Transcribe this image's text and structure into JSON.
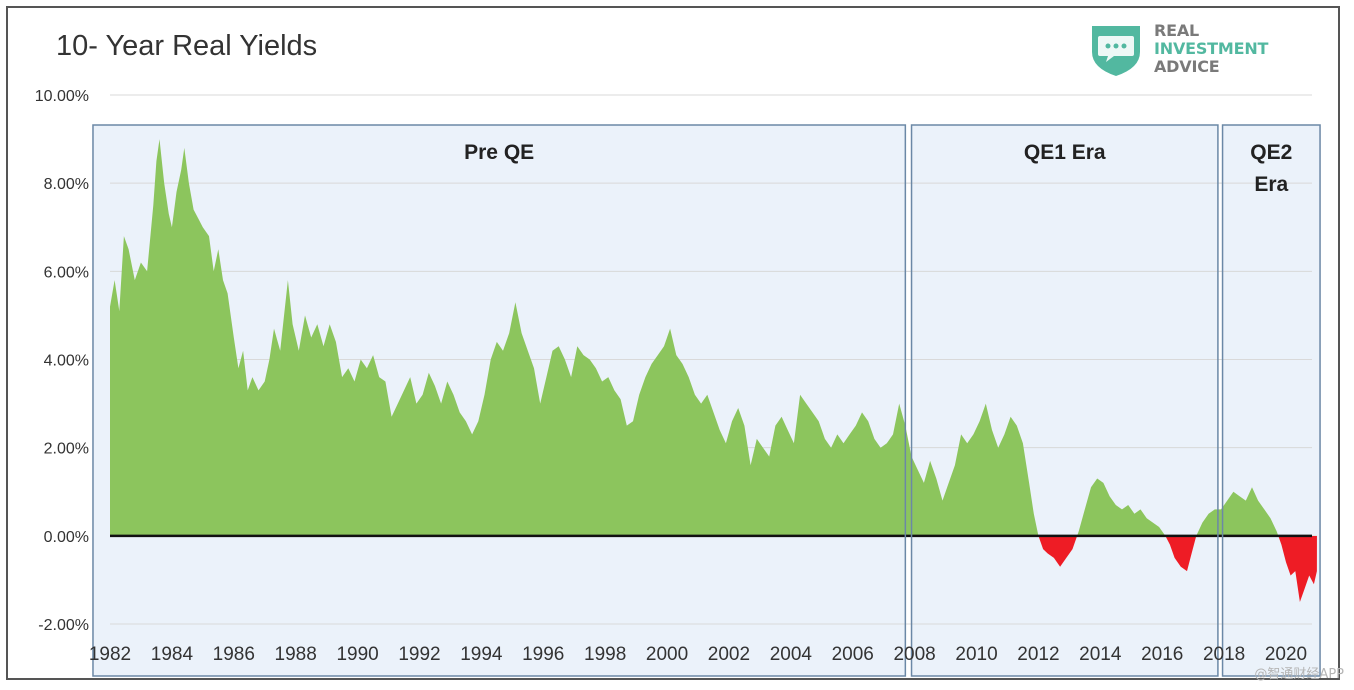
{
  "chart_data": {
    "type": "area",
    "title": "10- Year Real Yields",
    "xlabel": "",
    "ylabel": "",
    "y_tick_labels": [
      "10.00%",
      "8.00%",
      "6.00%",
      "4.00%",
      "2.00%",
      "0.00%",
      "-2.00%"
    ],
    "y_ticks": [
      10,
      8,
      6,
      4,
      2,
      0,
      -2
    ],
    "ylim": [
      -2.0,
      10.0
    ],
    "x_tick_labels": [
      "1982",
      "1984",
      "1986",
      "1988",
      "1990",
      "1992",
      "1994",
      "1996",
      "1998",
      "2000",
      "2002",
      "2004",
      "2006",
      "2008",
      "2010",
      "2012",
      "2014",
      "2016",
      "2018",
      "2020"
    ],
    "xlim": [
      1982,
      2021.1
    ],
    "grid": true,
    "colors": {
      "positive": "#8cc55d",
      "negative": "#ee1c25",
      "zero_line": "#111111",
      "grid": "#d9d9d9",
      "region_fill": "#e8f0f9",
      "region_border": "#6b88a6"
    },
    "regions": [
      {
        "label_lines": [
          "Pre QE"
        ],
        "start": 1981.45,
        "end": 2007.7
      },
      {
        "label_lines": [
          "QE1 Era"
        ],
        "start": 2007.9,
        "end": 2017.8
      },
      {
        "label_lines": [
          "QE2",
          "Era"
        ],
        "start": 2017.95,
        "end": 2021.1
      }
    ],
    "series": [
      {
        "values": [
          [
            1982.0,
            5.2
          ],
          [
            1982.15,
            5.8
          ],
          [
            1982.3,
            5.1
          ],
          [
            1982.45,
            6.8
          ],
          [
            1982.6,
            6.5
          ],
          [
            1982.8,
            5.8
          ],
          [
            1983.0,
            6.2
          ],
          [
            1983.2,
            6.0
          ],
          [
            1983.4,
            7.5
          ],
          [
            1983.5,
            8.5
          ],
          [
            1983.6,
            9.0
          ],
          [
            1983.75,
            8.0
          ],
          [
            1983.9,
            7.3
          ],
          [
            1984.0,
            7.0
          ],
          [
            1984.15,
            7.8
          ],
          [
            1984.3,
            8.3
          ],
          [
            1984.4,
            8.8
          ],
          [
            1984.55,
            8.0
          ],
          [
            1984.7,
            7.4
          ],
          [
            1984.85,
            7.2
          ],
          [
            1985.0,
            7.0
          ],
          [
            1985.2,
            6.8
          ],
          [
            1985.35,
            6.0
          ],
          [
            1985.5,
            6.5
          ],
          [
            1985.65,
            5.8
          ],
          [
            1985.8,
            5.5
          ],
          [
            1986.0,
            4.5
          ],
          [
            1986.15,
            3.8
          ],
          [
            1986.3,
            4.2
          ],
          [
            1986.45,
            3.3
          ],
          [
            1986.6,
            3.6
          ],
          [
            1986.8,
            3.3
          ],
          [
            1987.0,
            3.5
          ],
          [
            1987.15,
            4.0
          ],
          [
            1987.3,
            4.7
          ],
          [
            1987.5,
            4.2
          ],
          [
            1987.75,
            5.8
          ],
          [
            1987.9,
            4.8
          ],
          [
            1988.1,
            4.2
          ],
          [
            1988.3,
            5.0
          ],
          [
            1988.5,
            4.5
          ],
          [
            1988.7,
            4.8
          ],
          [
            1988.9,
            4.3
          ],
          [
            1989.1,
            4.8
          ],
          [
            1989.3,
            4.4
          ],
          [
            1989.5,
            3.6
          ],
          [
            1989.7,
            3.8
          ],
          [
            1989.9,
            3.5
          ],
          [
            1990.1,
            4.0
          ],
          [
            1990.3,
            3.8
          ],
          [
            1990.5,
            4.1
          ],
          [
            1990.7,
            3.6
          ],
          [
            1990.9,
            3.5
          ],
          [
            1991.1,
            2.7
          ],
          [
            1991.3,
            3.0
          ],
          [
            1991.5,
            3.3
          ],
          [
            1991.7,
            3.6
          ],
          [
            1991.9,
            3.0
          ],
          [
            1992.1,
            3.2
          ],
          [
            1992.3,
            3.7
          ],
          [
            1992.5,
            3.4
          ],
          [
            1992.7,
            3.0
          ],
          [
            1992.9,
            3.5
          ],
          [
            1993.1,
            3.2
          ],
          [
            1993.3,
            2.8
          ],
          [
            1993.5,
            2.6
          ],
          [
            1993.7,
            2.3
          ],
          [
            1993.9,
            2.6
          ],
          [
            1994.1,
            3.2
          ],
          [
            1994.3,
            4.0
          ],
          [
            1994.5,
            4.4
          ],
          [
            1994.7,
            4.2
          ],
          [
            1994.9,
            4.6
          ],
          [
            1995.1,
            5.3
          ],
          [
            1995.3,
            4.6
          ],
          [
            1995.5,
            4.2
          ],
          [
            1995.7,
            3.8
          ],
          [
            1995.9,
            3.0
          ],
          [
            1996.1,
            3.6
          ],
          [
            1996.3,
            4.2
          ],
          [
            1996.5,
            4.3
          ],
          [
            1996.7,
            4.0
          ],
          [
            1996.9,
            3.6
          ],
          [
            1997.1,
            4.3
          ],
          [
            1997.3,
            4.1
          ],
          [
            1997.5,
            4.0
          ],
          [
            1997.7,
            3.8
          ],
          [
            1997.9,
            3.5
          ],
          [
            1998.1,
            3.6
          ],
          [
            1998.3,
            3.3
          ],
          [
            1998.5,
            3.1
          ],
          [
            1998.7,
            2.5
          ],
          [
            1998.9,
            2.6
          ],
          [
            1999.1,
            3.2
          ],
          [
            1999.3,
            3.6
          ],
          [
            1999.5,
            3.9
          ],
          [
            1999.7,
            4.1
          ],
          [
            1999.9,
            4.3
          ],
          [
            2000.1,
            4.7
          ],
          [
            2000.3,
            4.1
          ],
          [
            2000.5,
            3.9
          ],
          [
            2000.7,
            3.6
          ],
          [
            2000.9,
            3.2
          ],
          [
            2001.1,
            3.0
          ],
          [
            2001.3,
            3.2
          ],
          [
            2001.5,
            2.8
          ],
          [
            2001.7,
            2.4
          ],
          [
            2001.9,
            2.1
          ],
          [
            2002.1,
            2.6
          ],
          [
            2002.3,
            2.9
          ],
          [
            2002.5,
            2.5
          ],
          [
            2002.7,
            1.6
          ],
          [
            2002.9,
            2.2
          ],
          [
            2003.1,
            2.0
          ],
          [
            2003.3,
            1.8
          ],
          [
            2003.5,
            2.5
          ],
          [
            2003.7,
            2.7
          ],
          [
            2003.9,
            2.4
          ],
          [
            2004.1,
            2.1
          ],
          [
            2004.3,
            3.2
          ],
          [
            2004.5,
            3.0
          ],
          [
            2004.7,
            2.8
          ],
          [
            2004.9,
            2.6
          ],
          [
            2005.1,
            2.2
          ],
          [
            2005.3,
            2.0
          ],
          [
            2005.5,
            2.3
          ],
          [
            2005.7,
            2.1
          ],
          [
            2005.9,
            2.3
          ],
          [
            2006.1,
            2.5
          ],
          [
            2006.3,
            2.8
          ],
          [
            2006.5,
            2.6
          ],
          [
            2006.7,
            2.2
          ],
          [
            2006.9,
            2.0
          ],
          [
            2007.1,
            2.1
          ],
          [
            2007.3,
            2.3
          ],
          [
            2007.5,
            3.0
          ],
          [
            2007.7,
            2.5
          ],
          [
            2007.9,
            1.8
          ],
          [
            2008.1,
            1.5
          ],
          [
            2008.3,
            1.2
          ],
          [
            2008.5,
            1.7
          ],
          [
            2008.7,
            1.3
          ],
          [
            2008.9,
            0.8
          ],
          [
            2009.1,
            1.2
          ],
          [
            2009.3,
            1.6
          ],
          [
            2009.5,
            2.3
          ],
          [
            2009.7,
            2.1
          ],
          [
            2009.9,
            2.3
          ],
          [
            2010.1,
            2.6
          ],
          [
            2010.3,
            3.0
          ],
          [
            2010.5,
            2.4
          ],
          [
            2010.7,
            2.0
          ],
          [
            2010.9,
            2.3
          ],
          [
            2011.1,
            2.7
          ],
          [
            2011.3,
            2.5
          ],
          [
            2011.5,
            2.1
          ],
          [
            2011.7,
            1.2
          ],
          [
            2011.85,
            0.5
          ],
          [
            2012.0,
            0.0
          ],
          [
            2012.15,
            -0.3
          ],
          [
            2012.3,
            -0.4
          ],
          [
            2012.5,
            -0.5
          ],
          [
            2012.7,
            -0.7
          ],
          [
            2012.9,
            -0.5
          ],
          [
            2013.1,
            -0.3
          ],
          [
            2013.3,
            0.1
          ],
          [
            2013.5,
            0.6
          ],
          [
            2013.7,
            1.1
          ],
          [
            2013.9,
            1.3
          ],
          [
            2014.1,
            1.2
          ],
          [
            2014.3,
            0.9
          ],
          [
            2014.5,
            0.7
          ],
          [
            2014.7,
            0.6
          ],
          [
            2014.9,
            0.7
          ],
          [
            2015.1,
            0.5
          ],
          [
            2015.3,
            0.6
          ],
          [
            2015.5,
            0.4
          ],
          [
            2015.7,
            0.3
          ],
          [
            2015.9,
            0.2
          ],
          [
            2016.1,
            0.0
          ],
          [
            2016.25,
            -0.2
          ],
          [
            2016.4,
            -0.5
          ],
          [
            2016.6,
            -0.7
          ],
          [
            2016.8,
            -0.8
          ],
          [
            2016.95,
            -0.4
          ],
          [
            2017.1,
            0.0
          ],
          [
            2017.3,
            0.3
          ],
          [
            2017.5,
            0.5
          ],
          [
            2017.7,
            0.6
          ],
          [
            2017.9,
            0.6
          ],
          [
            2018.1,
            0.8
          ],
          [
            2018.3,
            1.0
          ],
          [
            2018.5,
            0.9
          ],
          [
            2018.7,
            0.8
          ],
          [
            2018.9,
            1.1
          ],
          [
            2019.1,
            0.8
          ],
          [
            2019.3,
            0.6
          ],
          [
            2019.5,
            0.4
          ],
          [
            2019.7,
            0.1
          ],
          [
            2019.85,
            -0.2
          ],
          [
            2020.0,
            -0.6
          ],
          [
            2020.15,
            -0.9
          ],
          [
            2020.3,
            -0.8
          ],
          [
            2020.45,
            -1.5
          ],
          [
            2020.6,
            -1.2
          ],
          [
            2020.75,
            -0.9
          ],
          [
            2020.9,
            -1.1
          ],
          [
            2021.0,
            -0.8
          ]
        ]
      }
    ]
  },
  "logo": {
    "line1": "REAL",
    "line2": "INVESTMENT",
    "line3": "ADVICE"
  },
  "watermark": "@智通财经APP"
}
